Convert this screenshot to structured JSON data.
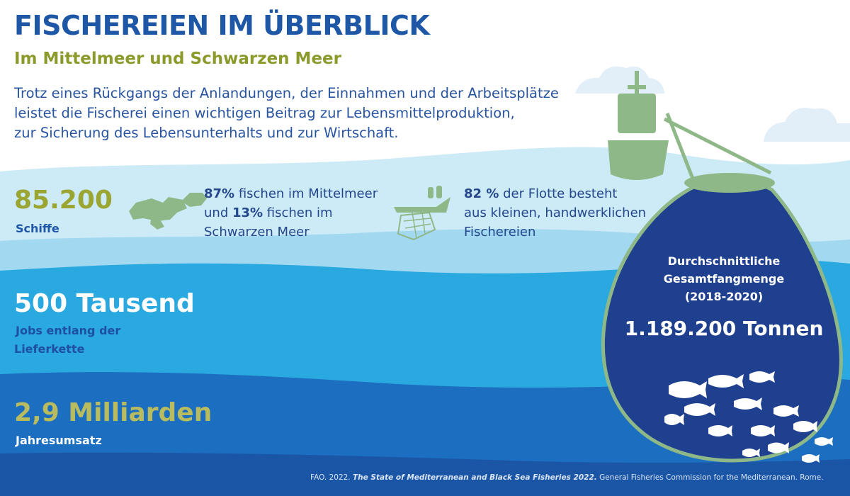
{
  "header": {
    "title": "FISCHEREIEN IM ÜBERBLICK",
    "subtitle": "Im Mittelmeer und Schwarzen Meer",
    "intro": [
      "Trotz eines Rückgangs der Anlandungen, der Einnahmen und der Arbeitsplätze",
      "leistet die Fischerei einen wichtigen Beitrag zur Lebensmittelproduktion,",
      "zur Sicherung des Lebensunterhalts und zur Wirtschaft."
    ]
  },
  "stats": {
    "vessels": {
      "value": "85.200",
      "label": "Schiffe"
    },
    "jobs": {
      "value": "500 Tausend",
      "label": [
        "Jobs entlang der",
        "Lieferkette"
      ]
    },
    "revenue": {
      "value": "2,9 Milliarden",
      "label": "Jahresumsatz"
    }
  },
  "regions": {
    "pct_med": "87%",
    "text_med": " fischen im Mittelmeer",
    "connector": "und ",
    "pct_black": "13%",
    "text_black": " fischen im",
    "line3": "Schwarzen Meer"
  },
  "fleet": {
    "pct": "82 %",
    "line1": " der Flotte besteht",
    "line2": "aus kleinen, handwerklichen",
    "line3": "Fischereien"
  },
  "catch": {
    "label": [
      "Durchschnittliche",
      "Gesamtfangmenge",
      "(2018-2020)"
    ],
    "value": "1.189.200 Tonnen"
  },
  "source": {
    "prefix": "FAO. 2022. ",
    "title": "The State of Mediterranean and Black Sea Fisheries 2022.",
    "suffix": " General Fisheries Commission for the Mediterranean. Rome."
  },
  "icons": [
    "mediterranean-map-icon",
    "small-scale-fishing-boat-icon",
    "fishing-vessel-icon",
    "fishing-net-icon",
    "fish-school-icon",
    "cloud-icon"
  ],
  "colors": {
    "title": "#1e57a6",
    "subtitle": "#8c9a2c",
    "sea_light": "#cdeaf7",
    "sea_mid": "#29a9e0",
    "sea_deep": "#1a5fb0",
    "net_fill": "#1f3f8f",
    "net_rope": "#8fb888"
  }
}
